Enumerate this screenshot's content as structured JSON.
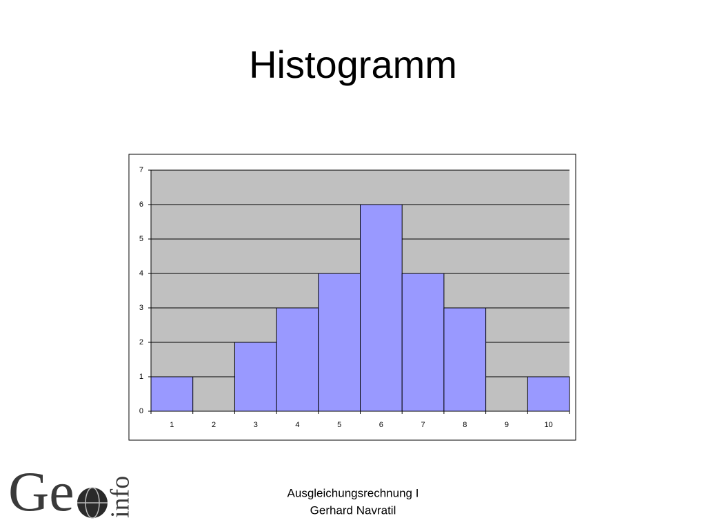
{
  "slide": {
    "title": "Histogramm",
    "footer": [
      "Ausgleichungsrechnung I",
      "Gerhard Navratil"
    ],
    "logo": {
      "text": "Ge",
      "suffix": "info"
    }
  },
  "chart_data": {
    "type": "bar",
    "categories": [
      "1",
      "2",
      "3",
      "4",
      "5",
      "6",
      "7",
      "8",
      "9",
      "10"
    ],
    "values": [
      1,
      0,
      2,
      3,
      4,
      6,
      4,
      3,
      0,
      1
    ],
    "color": "#9999ff",
    "plot_background": "#c0c0c0",
    "ylim": [
      0,
      7
    ],
    "yticks": [
      0,
      1,
      2,
      3,
      4,
      5,
      6,
      7
    ],
    "grid": true
  }
}
